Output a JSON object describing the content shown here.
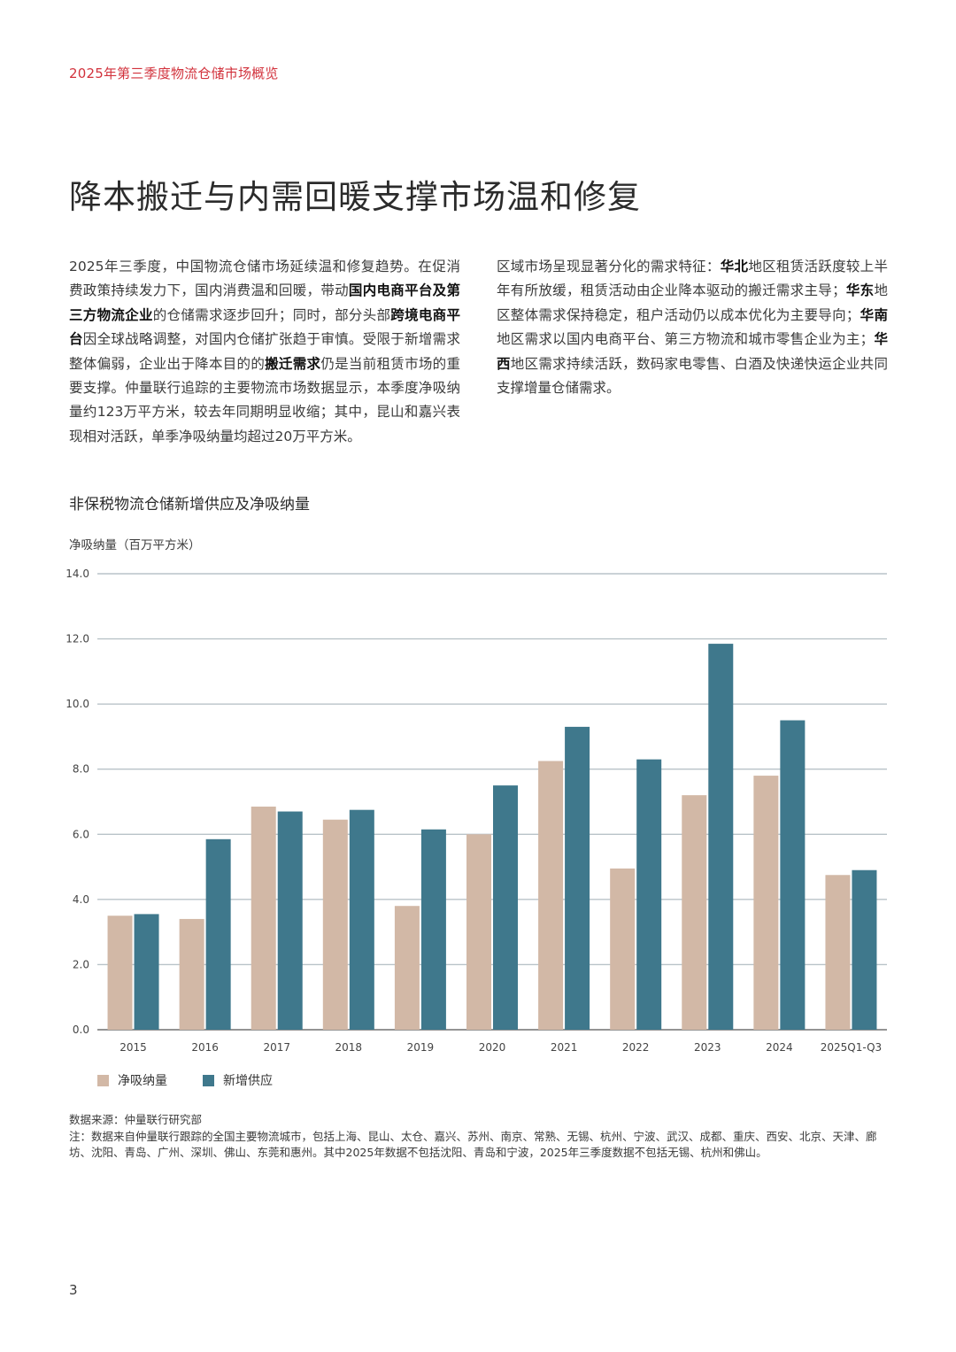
{
  "header": {
    "title": "2025年第三季度物流仓储市场概览"
  },
  "page_title": "降本搬迁与内需回暖支撑市场温和修复",
  "body": {
    "left": [
      {
        "t": "2025年三季度，中国物流仓储市场延续温和修复趋势。在促消费政策持续发力下，国内消费温和回暖，带动",
        "b": false
      },
      {
        "t": "国内电商平台及第三方物流企业",
        "b": true
      },
      {
        "t": "的仓储需求逐步回升；同时，部分头部",
        "b": false
      },
      {
        "t": "跨境电商平台",
        "b": true
      },
      {
        "t": "因全球战略调整，对国内仓储扩张趋于审慎。受限于新增需求整体偏弱，企业出于降本目的的",
        "b": false
      },
      {
        "t": "搬迁需求",
        "b": true
      },
      {
        "t": "仍是当前租赁市场的重要支撑。仲量联行追踪的主要物流市场数据显示，本季度净吸纳量约123万平方米，较去年同期明显收缩；其中，昆山和嘉兴表现相对活跃，单季净吸纳量均超过20万平方米。",
        "b": false
      }
    ],
    "right": [
      {
        "t": "区域市场呈现显著分化的需求特征：",
        "b": false
      },
      {
        "t": "华北",
        "b": true
      },
      {
        "t": "地区租赁活跃度较上半年有所放缓，租赁活动由企业降本驱动的搬迁需求主导；",
        "b": false
      },
      {
        "t": "华东",
        "b": true
      },
      {
        "t": "地区整体需求保持稳定，租户活动仍以成本优化为主要导向；",
        "b": false
      },
      {
        "t": "华南",
        "b": true
      },
      {
        "t": "地区需求以国内电商平台、第三方物流和城市零售企业为主；",
        "b": false
      },
      {
        "t": "华西",
        "b": true
      },
      {
        "t": "地区需求持续活跃，数码家电零售、白酒及快递快运企业共同支撑增量仓储需求。",
        "b": false
      }
    ]
  },
  "chart_title": "非保税物流仓储新增供应及净吸纳量",
  "y_axis_label": "净吸纳量（百万平方米）",
  "chart_data": {
    "type": "bar",
    "categories": [
      "2015",
      "2016",
      "2017",
      "2018",
      "2019",
      "2020",
      "2021",
      "2022",
      "2023",
      "2024",
      "2025Q1-Q3"
    ],
    "series": [
      {
        "name": "净吸纳量",
        "color": "#d2b8a6",
        "values": [
          3.5,
          3.4,
          6.85,
          6.45,
          3.8,
          6.0,
          8.25,
          4.95,
          7.2,
          7.8,
          4.75
        ]
      },
      {
        "name": "新增供应",
        "color": "#3f788c",
        "values": [
          3.55,
          5.85,
          6.7,
          6.75,
          6.15,
          7.5,
          9.3,
          8.3,
          11.85,
          9.5,
          4.9
        ]
      }
    ],
    "ylim": [
      0,
      14
    ],
    "yticks": [
      "0.0",
      "2.0",
      "4.0",
      "6.0",
      "8.0",
      "10.0",
      "12.0",
      "14.0"
    ],
    "grid": true,
    "legend_position": "bottom-left"
  },
  "source": "数据来源：仲量联行研究部",
  "note": "注：数据来自仲量联行跟踪的全国主要物流城市，包括上海、昆山、太仓、嘉兴、苏州、南京、常熟、无锡、杭州、宁波、武汉、成都、重庆、西安、北京、天津、廊坊、沈阳、青岛、广州、深圳、佛山、东莞和惠州。其中2025年数据不包括沈阳、青岛和宁波，2025年三季度数据不包括无锡、杭州和佛山。",
  "page_number": "3"
}
